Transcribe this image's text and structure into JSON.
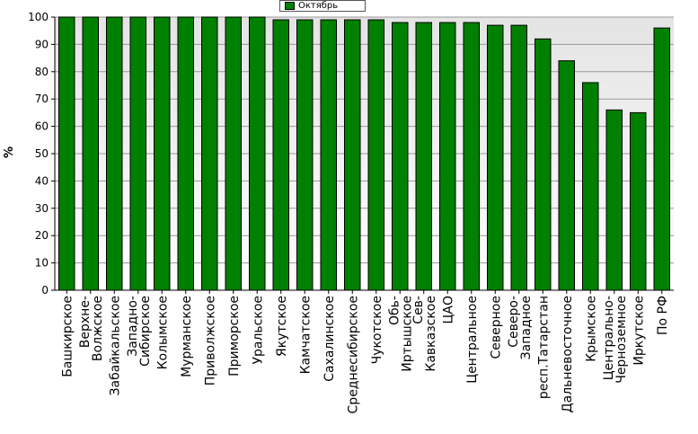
{
  "chart_data": {
    "type": "bar",
    "title": "",
    "xlabel": "",
    "ylabel": "%",
    "ylim": [
      0,
      100
    ],
    "yticks": [
      0,
      10,
      20,
      30,
      40,
      50,
      60,
      70,
      80,
      90,
      100
    ],
    "grid": true,
    "legend_position": "top-center",
    "colors": {
      "bar": "#008000",
      "bar_edge": "#000000",
      "plot_bg_top": "#e6e6e6",
      "plot_bg_bottom": "#ffffff"
    },
    "series": [
      {
        "name": "Октябрь",
        "values": [
          100,
          100,
          100,
          100,
          100,
          100,
          100,
          100,
          100,
          99,
          99,
          99,
          99,
          99,
          98,
          98,
          98,
          98,
          97,
          97,
          92,
          84,
          76,
          66,
          65,
          96
        ]
      }
    ],
    "categories": [
      [
        "Башкирское"
      ],
      [
        "Верхне-",
        "Волжское"
      ],
      [
        "Забайкальское"
      ],
      [
        "Западно-",
        "Сибирское"
      ],
      [
        "Колымское"
      ],
      [
        "Мурманское"
      ],
      [
        "Приволжское"
      ],
      [
        "Приморское"
      ],
      [
        "Уральское"
      ],
      [
        "Якутское"
      ],
      [
        "Камчатское"
      ],
      [
        "Сахалинское"
      ],
      [
        "Среднесибирское"
      ],
      [
        "Чукотское"
      ],
      [
        "Обь-",
        "Иртышское"
      ],
      [
        "Сев-",
        "Кавказское"
      ],
      [
        "ЦАО"
      ],
      [
        "Центральное"
      ],
      [
        "Северное"
      ],
      [
        "Северо-",
        "Западное"
      ],
      [
        "респ.Татарстан"
      ],
      [
        "Дальневосточное"
      ],
      [
        "Крымское"
      ],
      [
        "Центрально-",
        "Черноземное"
      ],
      [
        "Иркутское"
      ],
      [
        "По РФ"
      ]
    ]
  }
}
